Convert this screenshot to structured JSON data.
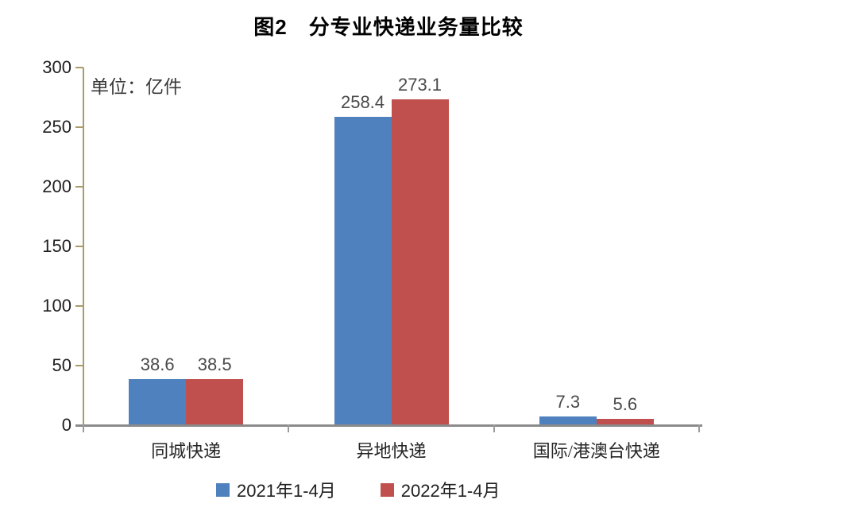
{
  "chart_data": {
    "type": "bar",
    "title": "图2　分专业快递业务量比较",
    "unit_label": "单位：亿件",
    "categories": [
      "同城快递",
      "异地快递",
      "国际/港澳台快递"
    ],
    "series": [
      {
        "name": "2021年1-4月",
        "color": "#4E81BD",
        "values": [
          38.6,
          258.4,
          7.3
        ]
      },
      {
        "name": "2022年1-4月",
        "color": "#C0504D",
        "values": [
          38.5,
          273.1,
          5.6
        ]
      }
    ],
    "ylim": [
      0,
      300
    ],
    "yticks": [
      0,
      50,
      100,
      150,
      200,
      250,
      300
    ],
    "grid": false,
    "legend_position": "bottom",
    "colors": {
      "y_axis": "#A89C6B",
      "x_axis": "#8B8B8B",
      "x_tick": "#9B9B9B",
      "value_label": "#4A4A4A"
    }
  }
}
